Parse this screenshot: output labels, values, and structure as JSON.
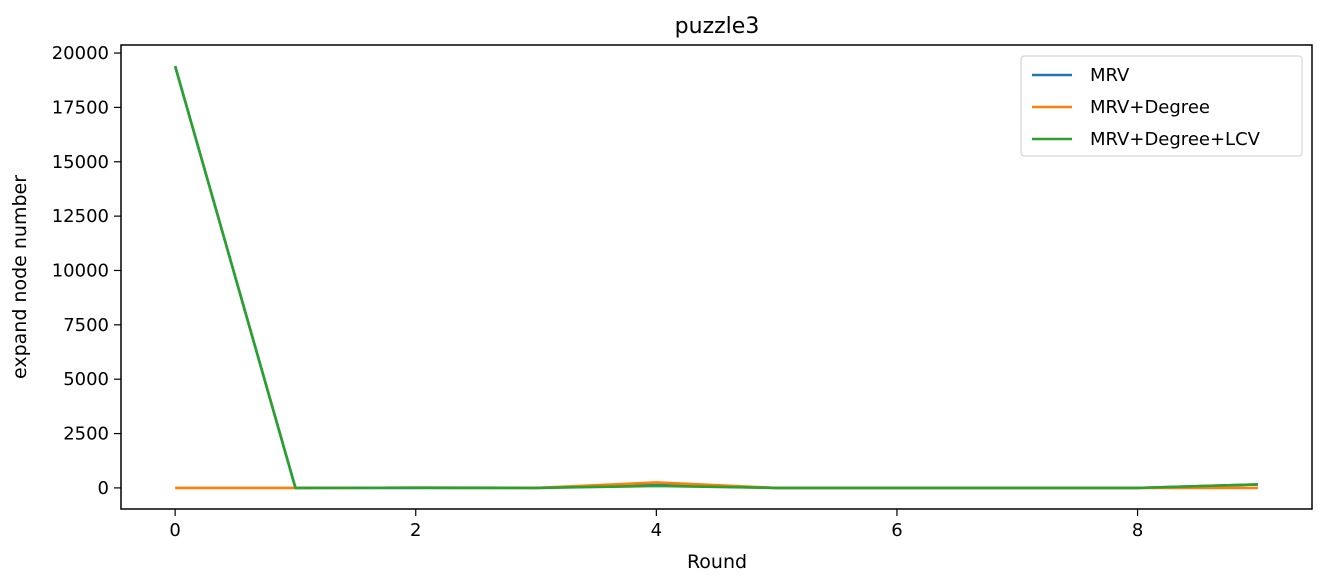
{
  "chart_data": {
    "type": "line",
    "title": "puzzle3",
    "xlabel": "Round",
    "ylabel": "expand node number",
    "x": [
      0,
      1,
      2,
      3,
      4,
      5,
      6,
      7,
      8,
      9
    ],
    "xlim": [
      -0.45,
      9.45
    ],
    "ylim": [
      -970,
      20370
    ],
    "xticks": [
      0,
      2,
      4,
      6,
      8
    ],
    "yticks": [
      0,
      2500,
      5000,
      7500,
      10000,
      12500,
      15000,
      17500,
      20000
    ],
    "grid": false,
    "legend_position": "top-right",
    "series": [
      {
        "name": "MRV",
        "color": "#1f77b4",
        "values": [
          19400,
          0,
          0,
          0,
          130,
          0,
          0,
          0,
          0,
          160
        ]
      },
      {
        "name": "MRV+Degree",
        "color": "#ff7f0e",
        "values": [
          0,
          0,
          10,
          0,
          250,
          0,
          0,
          0,
          0,
          0
        ]
      },
      {
        "name": "MRV+Degree+LCV",
        "color": "#2ca02c",
        "values": [
          19400,
          0,
          10,
          0,
          90,
          0,
          0,
          0,
          0,
          160
        ]
      }
    ]
  }
}
